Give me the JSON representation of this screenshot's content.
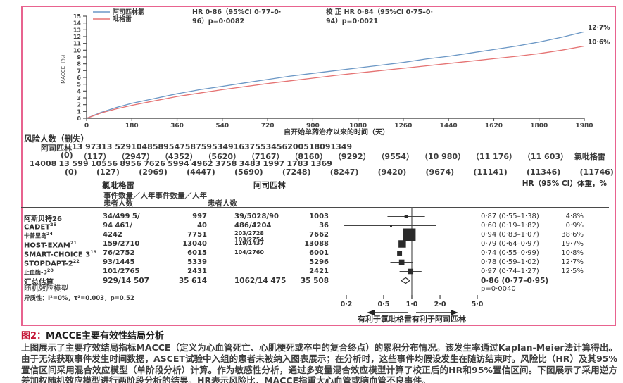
{
  "colors": {
    "frame": "#e8638f",
    "aspirin_series": "#6b97c5",
    "clopidogrel_series": "#e57373",
    "marker": "#2b2b2b"
  },
  "chart_data": [
    {
      "type": "line",
      "title": "",
      "xlabel": "自开始单药治疗以来的时间（天）",
      "ylabel": "MACCE（%）",
      "xlim": [
        0,
        1980
      ],
      "ylim": [
        0,
        15
      ],
      "xticks": [
        0,
        180,
        360,
        540,
        720,
        900,
        1080,
        1260,
        1440,
        1620,
        1800,
        1980
      ],
      "yticks": [
        0,
        1,
        2,
        3,
        4,
        5,
        6,
        7,
        8,
        9,
        10,
        11,
        12,
        13,
        14,
        15
      ],
      "x": [
        0,
        60,
        120,
        180,
        270,
        360,
        450,
        540,
        630,
        720,
        810,
        900,
        990,
        1080,
        1170,
        1260,
        1350,
        1440,
        1530,
        1620,
        1710,
        1800,
        1890,
        1980
      ],
      "series": [
        {
          "name": "阿司匹林氯",
          "color": "#6b97c5",
          "end_label": "12·7%",
          "values": [
            0,
            0.9,
            1.6,
            2.2,
            2.9,
            3.6,
            4.2,
            4.7,
            5.2,
            5.7,
            6.2,
            6.6,
            7.0,
            7.4,
            7.8,
            8.2,
            8.7,
            9.1,
            9.6,
            10.1,
            10.6,
            11.2,
            11.9,
            12.7
          ]
        },
        {
          "name": "吡格雷",
          "color": "#e57373",
          "end_label": "10·6%",
          "values": [
            0,
            0.8,
            1.4,
            1.9,
            2.55,
            3.2,
            3.7,
            4.2,
            4.65,
            5.1,
            5.5,
            5.9,
            6.3,
            6.65,
            7.0,
            7.35,
            7.7,
            8.05,
            8.4,
            8.75,
            9.1,
            9.5,
            10.0,
            10.6
          ]
        }
      ],
      "annotations": [
        [
          "HR 0·86（95%CI 0·77–0·",
          "96）p=0·0082"
        ],
        [
          "校 正 HR 0·84（95%CI 0·75–0·",
          "94）p=0·0021"
        ]
      ]
    },
    {
      "type": "forest",
      "x_scale": "log",
      "headers": {
        "clopidogrel": "氯吡格雷",
        "aspirin": "阿司匹林",
        "hr_col": "HR（95% CI）体重，%",
        "sub_events": "事件数量／人年事件数量／人年",
        "sub_patients_left": "患者人数",
        "sub_patients_right": "患者人数"
      },
      "studies": [
        {
          "study": "阿斯贝特26",
          "sup": "",
          "small": false,
          "clop_ep": "34/499 5/",
          "clop_py": "997",
          "asp_ep": [
            "39/5028/90"
          ],
          "asp_small": false,
          "asp_py": "1003",
          "hr_text": "0·87 (0·55–1·38)",
          "weight": "4·8%",
          "hr": 0.87,
          "lo": 0.55,
          "hi": 1.38,
          "w": 4.8
        },
        {
          "study": "CADET",
          "sup": "25",
          "small": false,
          "clop_ep": "94  461/",
          "clop_py": "40",
          "asp_ep": [
            "486/4204"
          ],
          "asp_small": false,
          "asp_py": "36",
          "hr_text": "0·60 (0·19–1·82)",
          "weight": "0·9%",
          "hr": 0.6,
          "lo": 0.19,
          "hi": 1.82,
          "w": 0.9
        },
        {
          "study": "卡普里岛",
          "sup": "24",
          "small": true,
          "clop_ep": "4242",
          "clop_py": "7751",
          "asp_ep": [
            "203/2728",
            "103/2754"
          ],
          "asp_small": true,
          "asp_py": "7662",
          "hr_text": "0·94 (0·83–1·07)",
          "weight": "38·6%",
          "hr": 0.94,
          "lo": 0.83,
          "hi": 1.07,
          "w": 38.6
        },
        {
          "study": "HOST-EXAM",
          "sup": "21",
          "small": false,
          "clop_ep": "159/2710",
          "clop_py": "13040",
          "asp_ep": [
            "119/1437"
          ],
          "asp_small": true,
          "asp_py": "13088",
          "hr_text": "0·79 (0·64–0·97)",
          "weight": "19·7%",
          "hr": 0.79,
          "lo": 0.64,
          "hi": 0.97,
          "w": 19.7
        },
        {
          "study": "SMART-CHOICE 3",
          "sup": "19",
          "small": false,
          "clop_ep": "76/2752",
          "clop_py": "6015",
          "asp_ep": [
            "104/2760"
          ],
          "asp_small": true,
          "asp_py": "6001",
          "hr_text": "0·74 (0·55–0·99)",
          "weight": "10·8%",
          "hr": 0.74,
          "lo": 0.55,
          "hi": 0.99,
          "w": 10.8
        },
        {
          "study": "STOPDAPT-2",
          "sup": "22",
          "small": false,
          "clop_ep": "93/1445",
          "clop_py": "5339",
          "asp_ep": [],
          "asp_small": false,
          "asp_py": "5296",
          "hr_text": "0·78 (0·59–1·02)",
          "weight": "12·7%",
          "hr": 0.78,
          "lo": 0.59,
          "hi": 1.02,
          "w": 12.7
        },
        {
          "study": "止血酶-3",
          "sup": "20",
          "small": true,
          "clop_ep": "101/2765",
          "clop_py": "2431",
          "asp_ep": [],
          "asp_small": false,
          "asp_py": "2421",
          "hr_text": "0·97 (0·74–1·27)",
          "weight": "12·5%",
          "hr": 0.97,
          "lo": 0.74,
          "hi": 1.27,
          "w": 12.5
        }
      ],
      "pooled": {
        "study": "汇总估算",
        "clop_ep": "929/14 507",
        "clop_py": "35 614",
        "asp_ep": "1062/14 475",
        "asp_py": "35 508",
        "hr_text": "0·86 (0·77–0·95)",
        "p": "p=0·0040",
        "hr": 0.86,
        "lo": 0.77,
        "hi": 0.95
      },
      "model_label": "随机效应模型",
      "heterogeneity": "异质性：I²=0%，τ²=0.003，p=0.52",
      "axis_ticks": [
        {
          "v": 0.2,
          "label": "0·2"
        },
        {
          "v": 0.5,
          "label": "0·5"
        },
        {
          "v": 1,
          "label": "1·0"
        },
        {
          "v": 2,
          "label": "2·0"
        },
        {
          "v": 5,
          "label": "5·0"
        }
      ],
      "favors_label": "有利于氯吡格雷有利于阿司匹林"
    }
  ],
  "risk_table": {
    "title": "风险人数（删失）",
    "rows": [
      {
        "label_left": "阿司匹林",
        "label_right": "",
        "values": [
          "13 973",
          "13 529",
          "10485",
          "8954",
          "7587",
          "5953",
          "4916",
          "3755",
          "3456",
          "2005",
          "1809",
          "1349"
        ]
      },
      {
        "label_left": "",
        "label_right": "氯吡格雷",
        "values": [
          "(0)",
          "（117）",
          "（2947）",
          "（4352）",
          "（5620）",
          "（7167）",
          "（8160）",
          "（9292）",
          "（9554）",
          "（10 980）",
          "（11 176）",
          "（11 603）"
        ]
      },
      {
        "label_left": "",
        "label_right": "",
        "values": [
          "14008",
          "13 599",
          "10556",
          "8956",
          "7626",
          "5994",
          "4962",
          "3758",
          "3483",
          "1997",
          "1783",
          "1369"
        ]
      },
      {
        "label_left": "",
        "label_right": "",
        "values": [
          "(0)",
          "(127)",
          "(2969)",
          "(4447)",
          "(5690)",
          "(7248)",
          "(8247)",
          "(9420)",
          "(9674)",
          "(11141)",
          "(11346)",
          "(11746)"
        ]
      }
    ]
  },
  "caption": {
    "title_prefix": "图2：",
    "title_rest": "MACCE主要有效性结局分析",
    "body": "上图展示了主要疗效结局指标MACCE（定义为心血管死亡、心肌梗死或卒中的复合终点）的累积分布情况。该发生率通过Kaplan-Meier法计算得出。由于无法获取事件发生时间数据，ASCET试验中入组的患者未被纳入图表展示；在分析时，这些事件均假设发生在随访结束时。风险比（HR）及其95%置信区间采用混合效应模型（单阶段分析）计算。作为敏感性分析，通过多变量混合效应模型计算了校正后的HR和95%置信区间。下图展示了采用逆方差加权随机效应模型进行两阶段分析的结果。HR表示风险比，MACCE指重大心血管或脑血管不良事件。"
  }
}
